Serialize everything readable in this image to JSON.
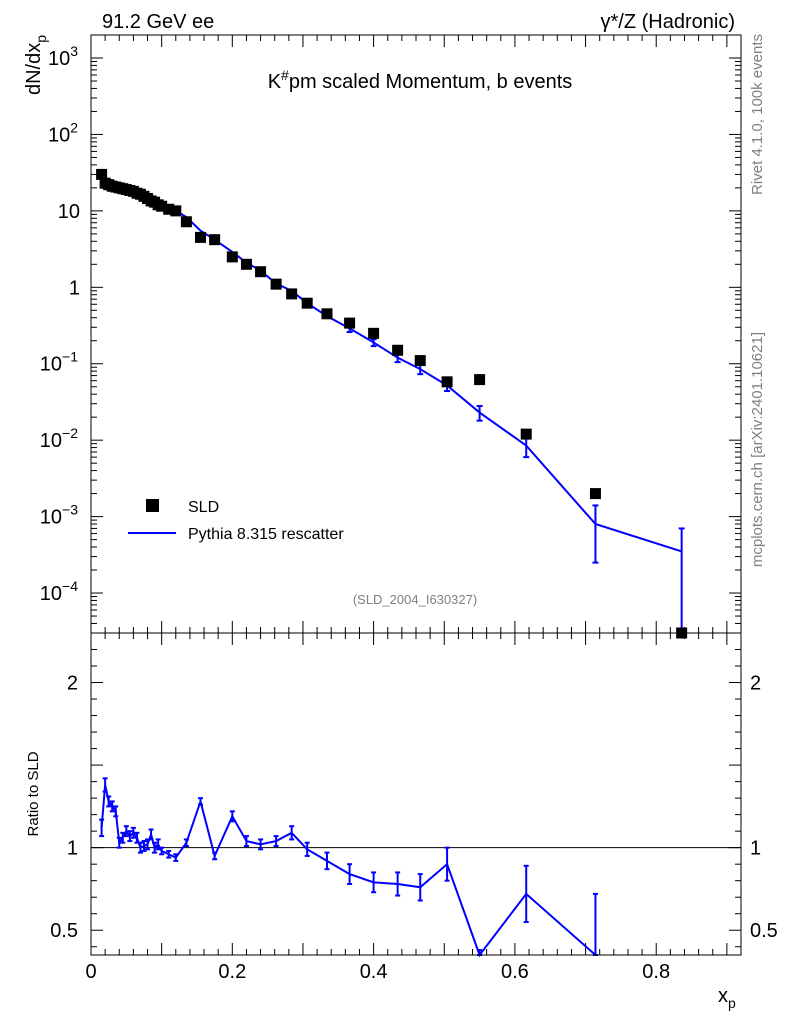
{
  "header": {
    "left": "91.2 GeV ee",
    "right_prefix": "γ*/Z",
    "right_suffix": " (Hadronic)"
  },
  "side": {
    "top": "Rivet 4.1.0,  100k events",
    "bottom": "mcplots.cern.ch [arXiv:2401.10621]"
  },
  "chart_data": [
    {
      "panel": "main",
      "type": "scatter",
      "title_base": "K",
      "title_sup": "#",
      "title_rest": "pm scaled Momentum, b events",
      "ylabel_base": "dN/dx",
      "ylabel_sub": "p",
      "xlabel_base": "x",
      "xlabel_sub": "p",
      "yscale": "log",
      "xlim": [
        0,
        0.92
      ],
      "ylim": [
        3e-05,
        2000
      ],
      "ytick_labels": [
        {
          "value": 1000,
          "base": "10",
          "exp": "3"
        },
        {
          "value": 100,
          "base": "10",
          "exp": "2"
        },
        {
          "value": 10,
          "base": "10",
          "exp": ""
        },
        {
          "value": 1,
          "base": "1",
          "exp": ""
        },
        {
          "value": 0.1,
          "base": "10",
          "exp": "−1"
        },
        {
          "value": 0.01,
          "base": "10",
          "exp": "−2"
        },
        {
          "value": 0.001,
          "base": "10",
          "exp": "−3"
        },
        {
          "value": 0.0001,
          "base": "10",
          "exp": "−4"
        }
      ],
      "annotation": "(SLD_2004_I630327)",
      "legend": [
        {
          "label": "SLD",
          "marker": "square",
          "color": "#000000"
        },
        {
          "label": "Pythia 8.315 rescatter",
          "marker": "line",
          "color": "#0000ff"
        }
      ],
      "series": [
        {
          "name": "SLD",
          "x": [
            0.015,
            0.02,
            0.025,
            0.03,
            0.035,
            0.04,
            0.045,
            0.05,
            0.055,
            0.06,
            0.065,
            0.07,
            0.075,
            0.08,
            0.085,
            0.09,
            0.095,
            0.1,
            0.11,
            0.12,
            0.135,
            0.155,
            0.175,
            0.2,
            0.22,
            0.24,
            0.262,
            0.284,
            0.306,
            0.334,
            0.366,
            0.4,
            0.434,
            0.466,
            0.504,
            0.55,
            0.616,
            0.714,
            0.836
          ],
          "y": [
            30,
            23,
            22,
            21,
            20.5,
            20,
            19.5,
            19,
            18.5,
            18,
            17,
            16.5,
            15.5,
            14.5,
            13.5,
            13,
            12,
            11.5,
            10.5,
            10,
            7.2,
            4.5,
            4.2,
            2.5,
            2.0,
            1.6,
            1.1,
            0.82,
            0.62,
            0.45,
            0.34,
            0.25,
            0.15,
            0.11,
            0.058,
            0.062,
            0.012,
            0.002,
            3e-05
          ]
        },
        {
          "name": "Pythia 8.315 rescatter",
          "x": [
            0.015,
            0.02,
            0.025,
            0.03,
            0.035,
            0.04,
            0.045,
            0.05,
            0.055,
            0.06,
            0.065,
            0.07,
            0.075,
            0.08,
            0.085,
            0.09,
            0.095,
            0.1,
            0.11,
            0.12,
            0.135,
            0.155,
            0.175,
            0.2,
            0.22,
            0.24,
            0.262,
            0.284,
            0.306,
            0.334,
            0.366,
            0.4,
            0.434,
            0.466,
            0.504,
            0.55,
            0.616,
            0.714,
            0.836
          ],
          "y": [
            28,
            27,
            26,
            25,
            24,
            23,
            21,
            20,
            19.5,
            19,
            18,
            17.5,
            16.5,
            16,
            15,
            14,
            13,
            12,
            11,
            10,
            8.3,
            5.5,
            4.2,
            2.9,
            2.1,
            1.65,
            1.12,
            0.9,
            0.62,
            0.42,
            0.29,
            0.19,
            0.12,
            0.085,
            0.052,
            0.023,
            0.0085,
            0.0008,
            0.00035
          ],
          "err_lo": [
            0,
            0,
            0,
            0,
            0,
            0,
            0,
            0,
            0,
            0,
            0,
            0,
            0,
            0,
            0,
            0,
            0,
            0,
            0,
            0,
            0,
            0,
            0,
            0,
            0,
            0,
            0,
            0,
            0,
            0,
            0.03,
            0.02,
            0.015,
            0.012,
            0.008,
            0.005,
            0.0025,
            0.00055,
            0.00035
          ],
          "err_hi": [
            0,
            0,
            0,
            0,
            0,
            0,
            0,
            0,
            0,
            0,
            0,
            0,
            0,
            0,
            0,
            0,
            0,
            0,
            0,
            0,
            0,
            0,
            0,
            0,
            0,
            0,
            0,
            0,
            0,
            0,
            0.03,
            0.02,
            0.015,
            0.012,
            0.008,
            0.005,
            0.0025,
            0.0006,
            0.00035
          ]
        }
      ]
    },
    {
      "panel": "ratio",
      "type": "line",
      "ylabel": "Ratio to SLD",
      "xlim": [
        0,
        0.92
      ],
      "ylim": [
        0.35,
        2.3
      ],
      "xticks": [
        0,
        0.2,
        0.4,
        0.6,
        0.8
      ],
      "xtick_labels": [
        "0",
        "0.2",
        "0.4",
        "0.6",
        "0.8"
      ],
      "yticks": [
        0.5,
        1,
        2
      ],
      "ytick_labels": [
        "0.5",
        "1",
        "2"
      ],
      "reference_line": 1,
      "series": [
        {
          "name": "Pythia 8.315 rescatter / SLD",
          "x": [
            0.015,
            0.02,
            0.025,
            0.03,
            0.035,
            0.04,
            0.045,
            0.05,
            0.055,
            0.06,
            0.065,
            0.07,
            0.075,
            0.08,
            0.085,
            0.09,
            0.095,
            0.1,
            0.11,
            0.12,
            0.135,
            0.155,
            0.175,
            0.2,
            0.22,
            0.24,
            0.262,
            0.284,
            0.306,
            0.334,
            0.366,
            0.4,
            0.434,
            0.466,
            0.504,
            0.55,
            0.616,
            0.714
          ],
          "y": [
            1.12,
            1.38,
            1.28,
            1.25,
            1.22,
            1.03,
            1.06,
            1.1,
            1.07,
            1.09,
            1.06,
            1.0,
            1.01,
            1.02,
            1.08,
            1.0,
            1.02,
            0.98,
            0.96,
            0.94,
            1.03,
            1.28,
            0.95,
            1.19,
            1.04,
            1.02,
            1.04,
            1.09,
            0.99,
            0.92,
            0.84,
            0.79,
            0.78,
            0.76,
            0.9,
            0.35,
            0.72,
            0.35
          ],
          "err": [
            0.05,
            0.04,
            0.03,
            0.03,
            0.03,
            0.03,
            0.03,
            0.03,
            0.03,
            0.03,
            0.03,
            0.03,
            0.03,
            0.03,
            0.03,
            0.03,
            0.03,
            0.02,
            0.02,
            0.02,
            0.02,
            0.02,
            0.02,
            0.03,
            0.03,
            0.03,
            0.03,
            0.04,
            0.04,
            0.05,
            0.06,
            0.06,
            0.07,
            0.08,
            0.1,
            0.03,
            0.17,
            0.37
          ]
        }
      ]
    }
  ]
}
